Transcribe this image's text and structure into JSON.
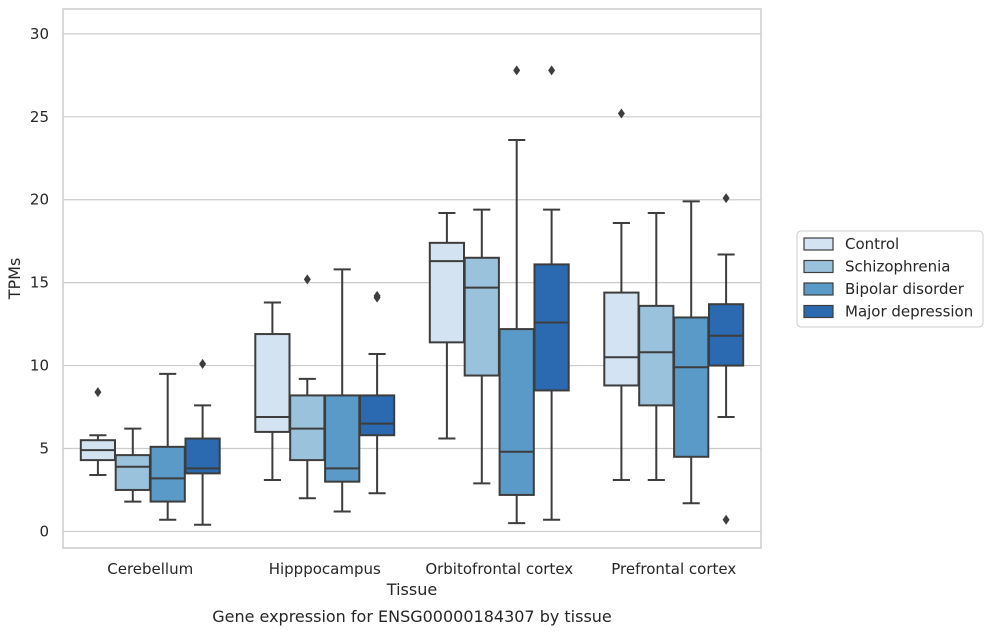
{
  "chart_data": {
    "type": "box",
    "caption": "Gene expression for ENSG00000184307 by tissue",
    "xlabel": "Tissue",
    "ylabel": "TPMs",
    "ylim": [
      -1,
      31.5
    ],
    "yticks": [
      0,
      5,
      10,
      15,
      20,
      25,
      30
    ],
    "grid": true,
    "legend_position": "right",
    "categories": [
      "Cerebellum",
      "Hipppocampus",
      "Orbitofrontal cortex",
      "Prefrontal cortex"
    ],
    "series": [
      {
        "name": "Control",
        "color": "#d4e3f1",
        "boxes": [
          {
            "whislo": 3.4,
            "q1": 4.3,
            "med": 4.9,
            "q3": 5.5,
            "whishi": 5.8,
            "fliers": [
              8.4
            ]
          },
          {
            "whislo": 3.1,
            "q1": 6.0,
            "med": 6.9,
            "q3": 11.9,
            "whishi": 13.8,
            "fliers": []
          },
          {
            "whislo": 5.6,
            "q1": 11.4,
            "med": 16.3,
            "q3": 17.4,
            "whishi": 19.2,
            "fliers": []
          },
          {
            "whislo": 3.1,
            "q1": 8.8,
            "med": 10.5,
            "q3": 14.4,
            "whishi": 18.6,
            "fliers": [
              25.2
            ]
          }
        ]
      },
      {
        "name": "Schizophrenia",
        "color": "#9bc2dc",
        "boxes": [
          {
            "whislo": 1.8,
            "q1": 2.5,
            "med": 3.9,
            "q3": 4.6,
            "whishi": 6.2,
            "fliers": []
          },
          {
            "whislo": 2.0,
            "q1": 4.3,
            "med": 6.2,
            "q3": 8.2,
            "whishi": 9.2,
            "fliers": [
              15.2
            ]
          },
          {
            "whislo": 2.9,
            "q1": 9.4,
            "med": 14.7,
            "q3": 16.5,
            "whishi": 19.4,
            "fliers": []
          },
          {
            "whislo": 3.1,
            "q1": 7.6,
            "med": 10.8,
            "q3": 13.6,
            "whishi": 19.2,
            "fliers": []
          }
        ]
      },
      {
        "name": "Bipolar disorder",
        "color": "#5a9ac8",
        "boxes": [
          {
            "whislo": 0.7,
            "q1": 1.8,
            "med": 3.2,
            "q3": 5.1,
            "whishi": 9.5,
            "fliers": []
          },
          {
            "whislo": 1.2,
            "q1": 3.0,
            "med": 3.8,
            "q3": 8.2,
            "whishi": 15.8,
            "fliers": []
          },
          {
            "whislo": 0.5,
            "q1": 2.2,
            "med": 4.8,
            "q3": 12.2,
            "whishi": 23.6,
            "fliers": [
              27.8
            ]
          },
          {
            "whislo": 1.7,
            "q1": 4.5,
            "med": 9.9,
            "q3": 12.9,
            "whishi": 19.9,
            "fliers": []
          }
        ]
      },
      {
        "name": "Major depression",
        "color": "#2b6ab0",
        "boxes": [
          {
            "whislo": 0.4,
            "q1": 3.5,
            "med": 3.8,
            "q3": 5.6,
            "whishi": 7.6,
            "fliers": [
              10.1
            ]
          },
          {
            "whislo": 2.3,
            "q1": 5.8,
            "med": 6.5,
            "q3": 8.2,
            "whishi": 10.7,
            "fliers": [
              14.1,
              14.2
            ]
          },
          {
            "whislo": 0.7,
            "q1": 8.5,
            "med": 12.6,
            "q3": 16.1,
            "whishi": 19.4,
            "fliers": [
              27.8
            ]
          },
          {
            "whislo": 6.9,
            "q1": 10.0,
            "med": 11.8,
            "q3": 13.7,
            "whishi": 16.7,
            "fliers": [
              0.7,
              20.1
            ]
          }
        ]
      }
    ]
  }
}
